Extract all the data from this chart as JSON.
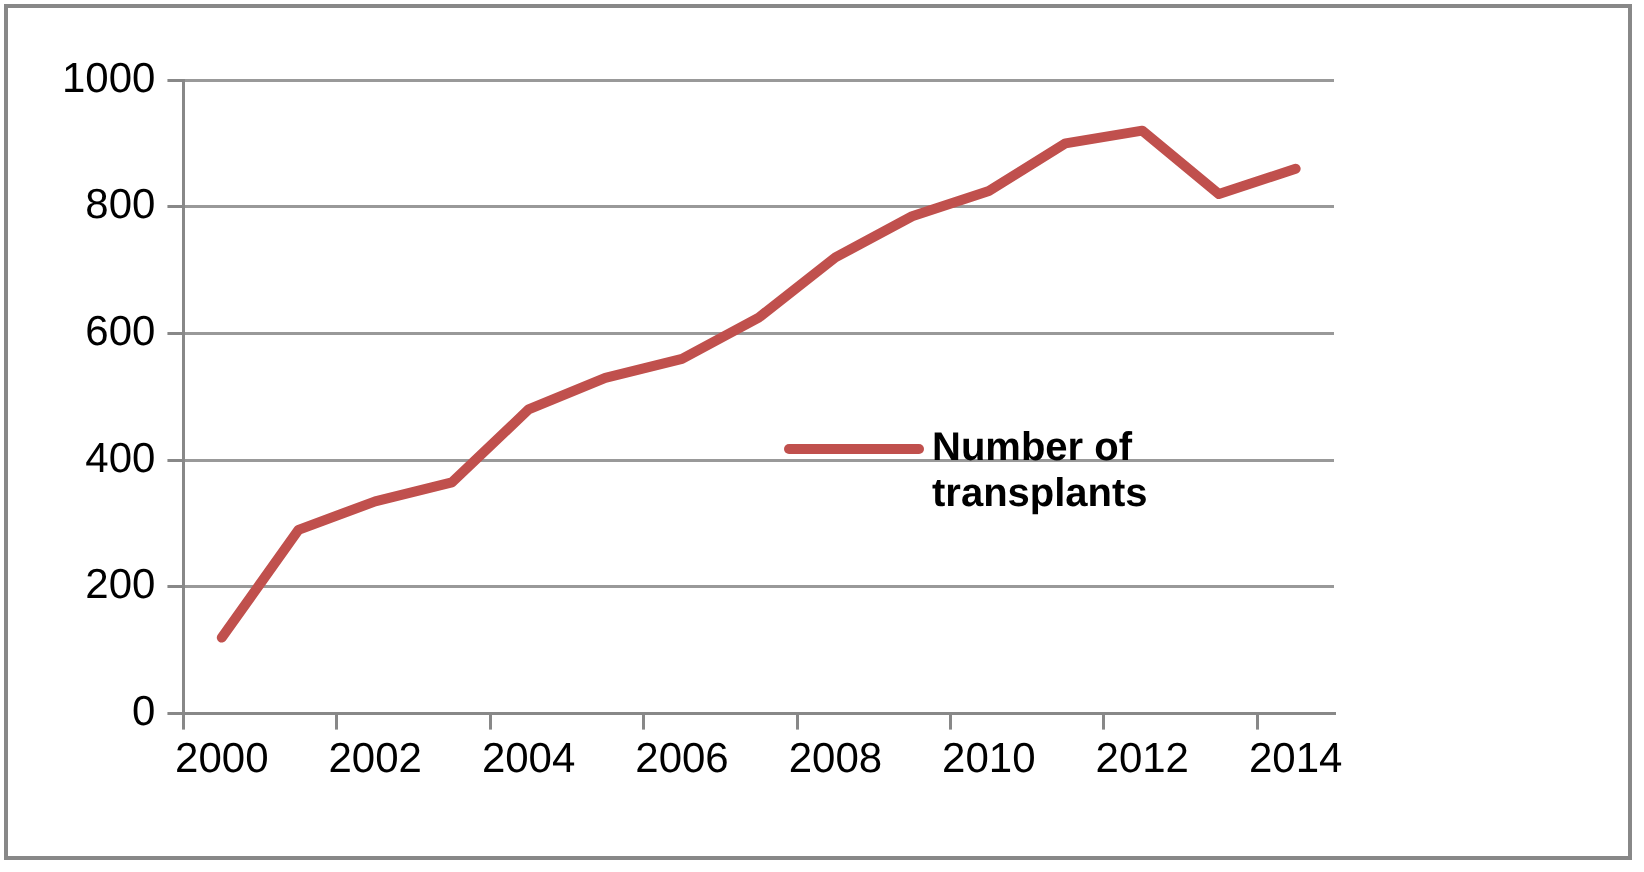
{
  "chart_data": {
    "type": "line",
    "categories": [
      "2000",
      null,
      "2002",
      null,
      "2004",
      null,
      "2006",
      null,
      "2008",
      null,
      "2010",
      null,
      "2012",
      null,
      "2014"
    ],
    "series": [
      {
        "name": "Number of transplants",
        "color": "#c0504d",
        "values": [
          120,
          290,
          335,
          365,
          480,
          530,
          560,
          625,
          720,
          785,
          825,
          900,
          920,
          820,
          860
        ]
      }
    ],
    "ylim": [
      0,
      1000
    ],
    "yticks": [
      0,
      200,
      400,
      600,
      800,
      1000
    ],
    "grid": "y",
    "legend": "right",
    "marker": "none"
  }
}
